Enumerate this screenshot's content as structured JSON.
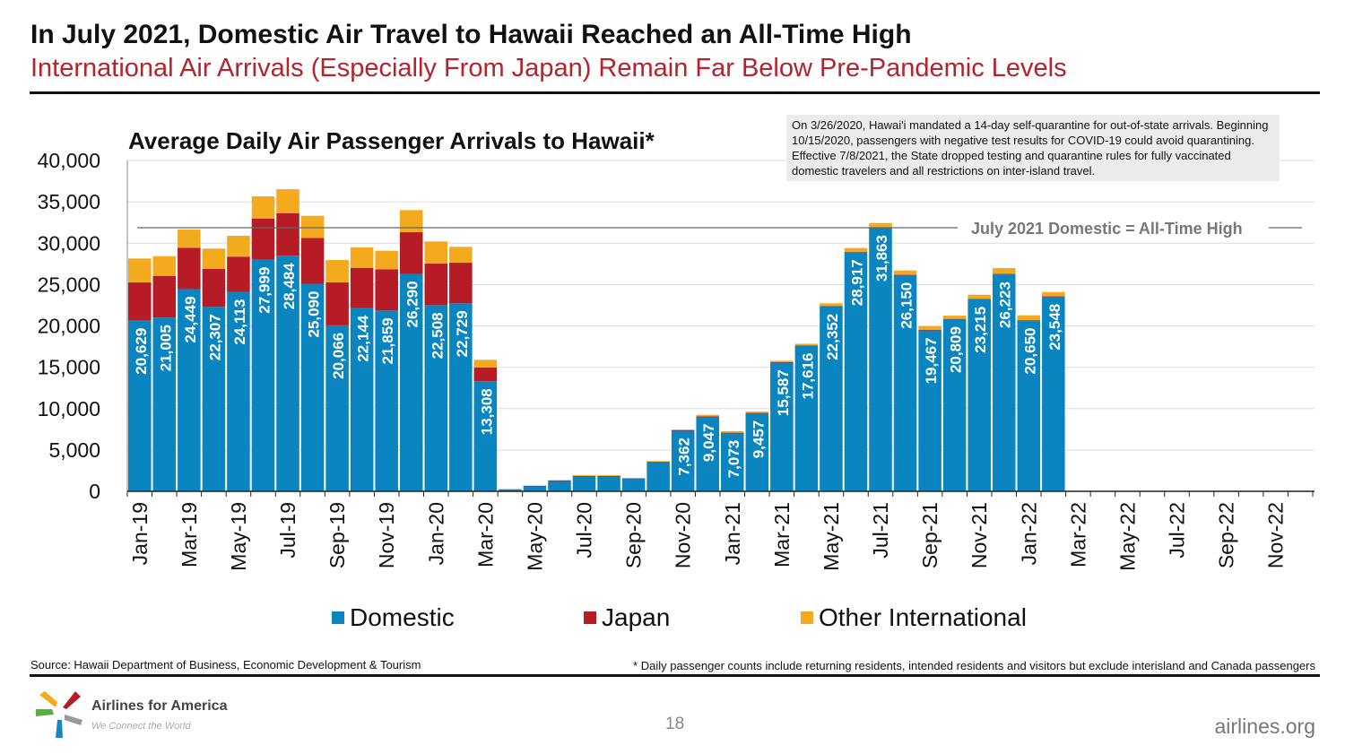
{
  "header": {
    "title": "In July 2021, Domestic Air Travel to Hawaii Reached an All-Time High",
    "subtitle": "International Air Arrivals (Especially From Japan) Remain Far Below Pre-Pandemic Levels"
  },
  "note": "On 3/26/2020, Hawai'i mandated a 14-day self-quarantine for out-of-state arrivals. Beginning 10/15/2020, passengers with negative test results for COVID-19 could avoid quarantining. Effective 7/8/2021, the State dropped testing and quarantine rules for fully vaccinated domestic travelers and all restrictions on inter-island travel.",
  "chart_data": {
    "type": "bar",
    "stacked": true,
    "title": "Average Daily Air Passenger Arrivals to Hawaii*",
    "ylim": [
      0,
      40000
    ],
    "yticks": [
      "0",
      "5,000",
      "10,000",
      "15,000",
      "20,000",
      "25,000",
      "30,000",
      "35,000",
      "40,000"
    ],
    "ytick_values": [
      0,
      5000,
      10000,
      15000,
      20000,
      25000,
      30000,
      35000,
      40000
    ],
    "grid": true,
    "legend_placement": "bottom",
    "categories": [
      "Jan-19",
      "Feb-19",
      "Mar-19",
      "Apr-19",
      "May-19",
      "Jun-19",
      "Jul-19",
      "Aug-19",
      "Sep-19",
      "Oct-19",
      "Nov-19",
      "Dec-19",
      "Jan-20",
      "Feb-20",
      "Mar-20",
      "Apr-20",
      "May-20",
      "Jun-20",
      "Jul-20",
      "Aug-20",
      "Sep-20",
      "Oct-20",
      "Nov-20",
      "Dec-20",
      "Jan-21",
      "Feb-21",
      "Mar-21",
      "Apr-21",
      "May-21",
      "Jun-21",
      "Jul-21",
      "Aug-21",
      "Sep-21",
      "Oct-21",
      "Nov-21",
      "Dec-21",
      "Jan-22",
      "Feb-22",
      "Mar-22",
      "Apr-22",
      "May-22",
      "Jun-22",
      "Jul-22",
      "Aug-22",
      "Sep-22",
      "Oct-22",
      "Nov-22",
      "Dec-22"
    ],
    "xtick_labels": [
      "Jan-19",
      "Mar-19",
      "May-19",
      "Jul-19",
      "Sep-19",
      "Nov-19",
      "Jan-20",
      "Mar-20",
      "May-20",
      "Jul-20",
      "Sep-20",
      "Nov-20",
      "Jan-21",
      "Mar-21",
      "May-21",
      "Jul-21",
      "Sep-21",
      "Nov-21",
      "Jan-22",
      "Mar-22",
      "May-22",
      "Jul-22",
      "Sep-22",
      "Nov-22"
    ],
    "series": [
      {
        "name": "Domestic",
        "color": "#0a85bf",
        "values": [
          20629,
          21005,
          24449,
          22307,
          24113,
          27999,
          28484,
          25090,
          20066,
          22144,
          21859,
          26290,
          22508,
          22729,
          13308,
          250,
          680,
          1300,
          1850,
          1850,
          1550,
          3550,
          7362,
          9047,
          7073,
          9457,
          15587,
          17616,
          22352,
          28917,
          31863,
          26150,
          19467,
          20809,
          23215,
          26223,
          20650,
          23548,
          null,
          null,
          null,
          null,
          null,
          null,
          null,
          null,
          null,
          null
        ],
        "labels": [
          "20,629",
          "21,005",
          "24,449",
          "22,307",
          "24,113",
          "27,999",
          "28,484",
          "25,090",
          "20,066",
          "22,144",
          "21,859",
          "26,290",
          "22,508",
          "22,729",
          "13,308",
          null,
          null,
          null,
          null,
          null,
          null,
          null,
          "7,362",
          "9,047",
          "7,073",
          "9,457",
          "15,587",
          "17,616",
          "22,352",
          "28,917",
          "31,863",
          "26,150",
          "19,467",
          "20,809",
          "23,215",
          "26,223",
          "20,650",
          "23,548",
          null,
          null,
          null,
          null,
          null,
          null,
          null,
          null,
          null,
          null
        ]
      },
      {
        "name": "Japan",
        "color": "#b51c26",
        "values": [
          4630,
          5040,
          5000,
          4580,
          4260,
          4990,
          5150,
          5550,
          5190,
          4880,
          4990,
          5040,
          5020,
          4910,
          1650,
          5,
          5,
          5,
          5,
          5,
          5,
          10,
          10,
          10,
          10,
          10,
          20,
          20,
          30,
          50,
          50,
          60,
          40,
          40,
          40,
          60,
          40,
          40,
          null,
          null,
          null,
          null,
          null,
          null,
          null,
          null,
          null,
          null
        ]
      },
      {
        "name": "Other International",
        "color": "#f3aa1e",
        "values": [
          2890,
          2380,
          2200,
          2460,
          2520,
          2670,
          2890,
          2670,
          2710,
          2460,
          2240,
          2670,
          2680,
          1920,
          940,
          5,
          20,
          50,
          100,
          100,
          50,
          100,
          110,
          190,
          180,
          180,
          180,
          200,
          350,
          450,
          530,
          490,
          440,
          400,
          510,
          710,
          590,
          510,
          null,
          null,
          null,
          null,
          null,
          null,
          null,
          null,
          null,
          null
        ]
      }
    ],
    "reference_line": {
      "value": 31863,
      "label": "July 2021 Domestic = All-Time High"
    }
  },
  "footer": {
    "source": "Source: Hawaii Department of Business, Economic Development & Tourism",
    "footnote": "* Daily passenger counts include returning residents, intended residents and visitors but exclude interisland and Canada passengers",
    "page_number": "18",
    "site": "airlines.org",
    "logo_name": "Airlines for America",
    "logo_tagline": "We Connect the World"
  }
}
